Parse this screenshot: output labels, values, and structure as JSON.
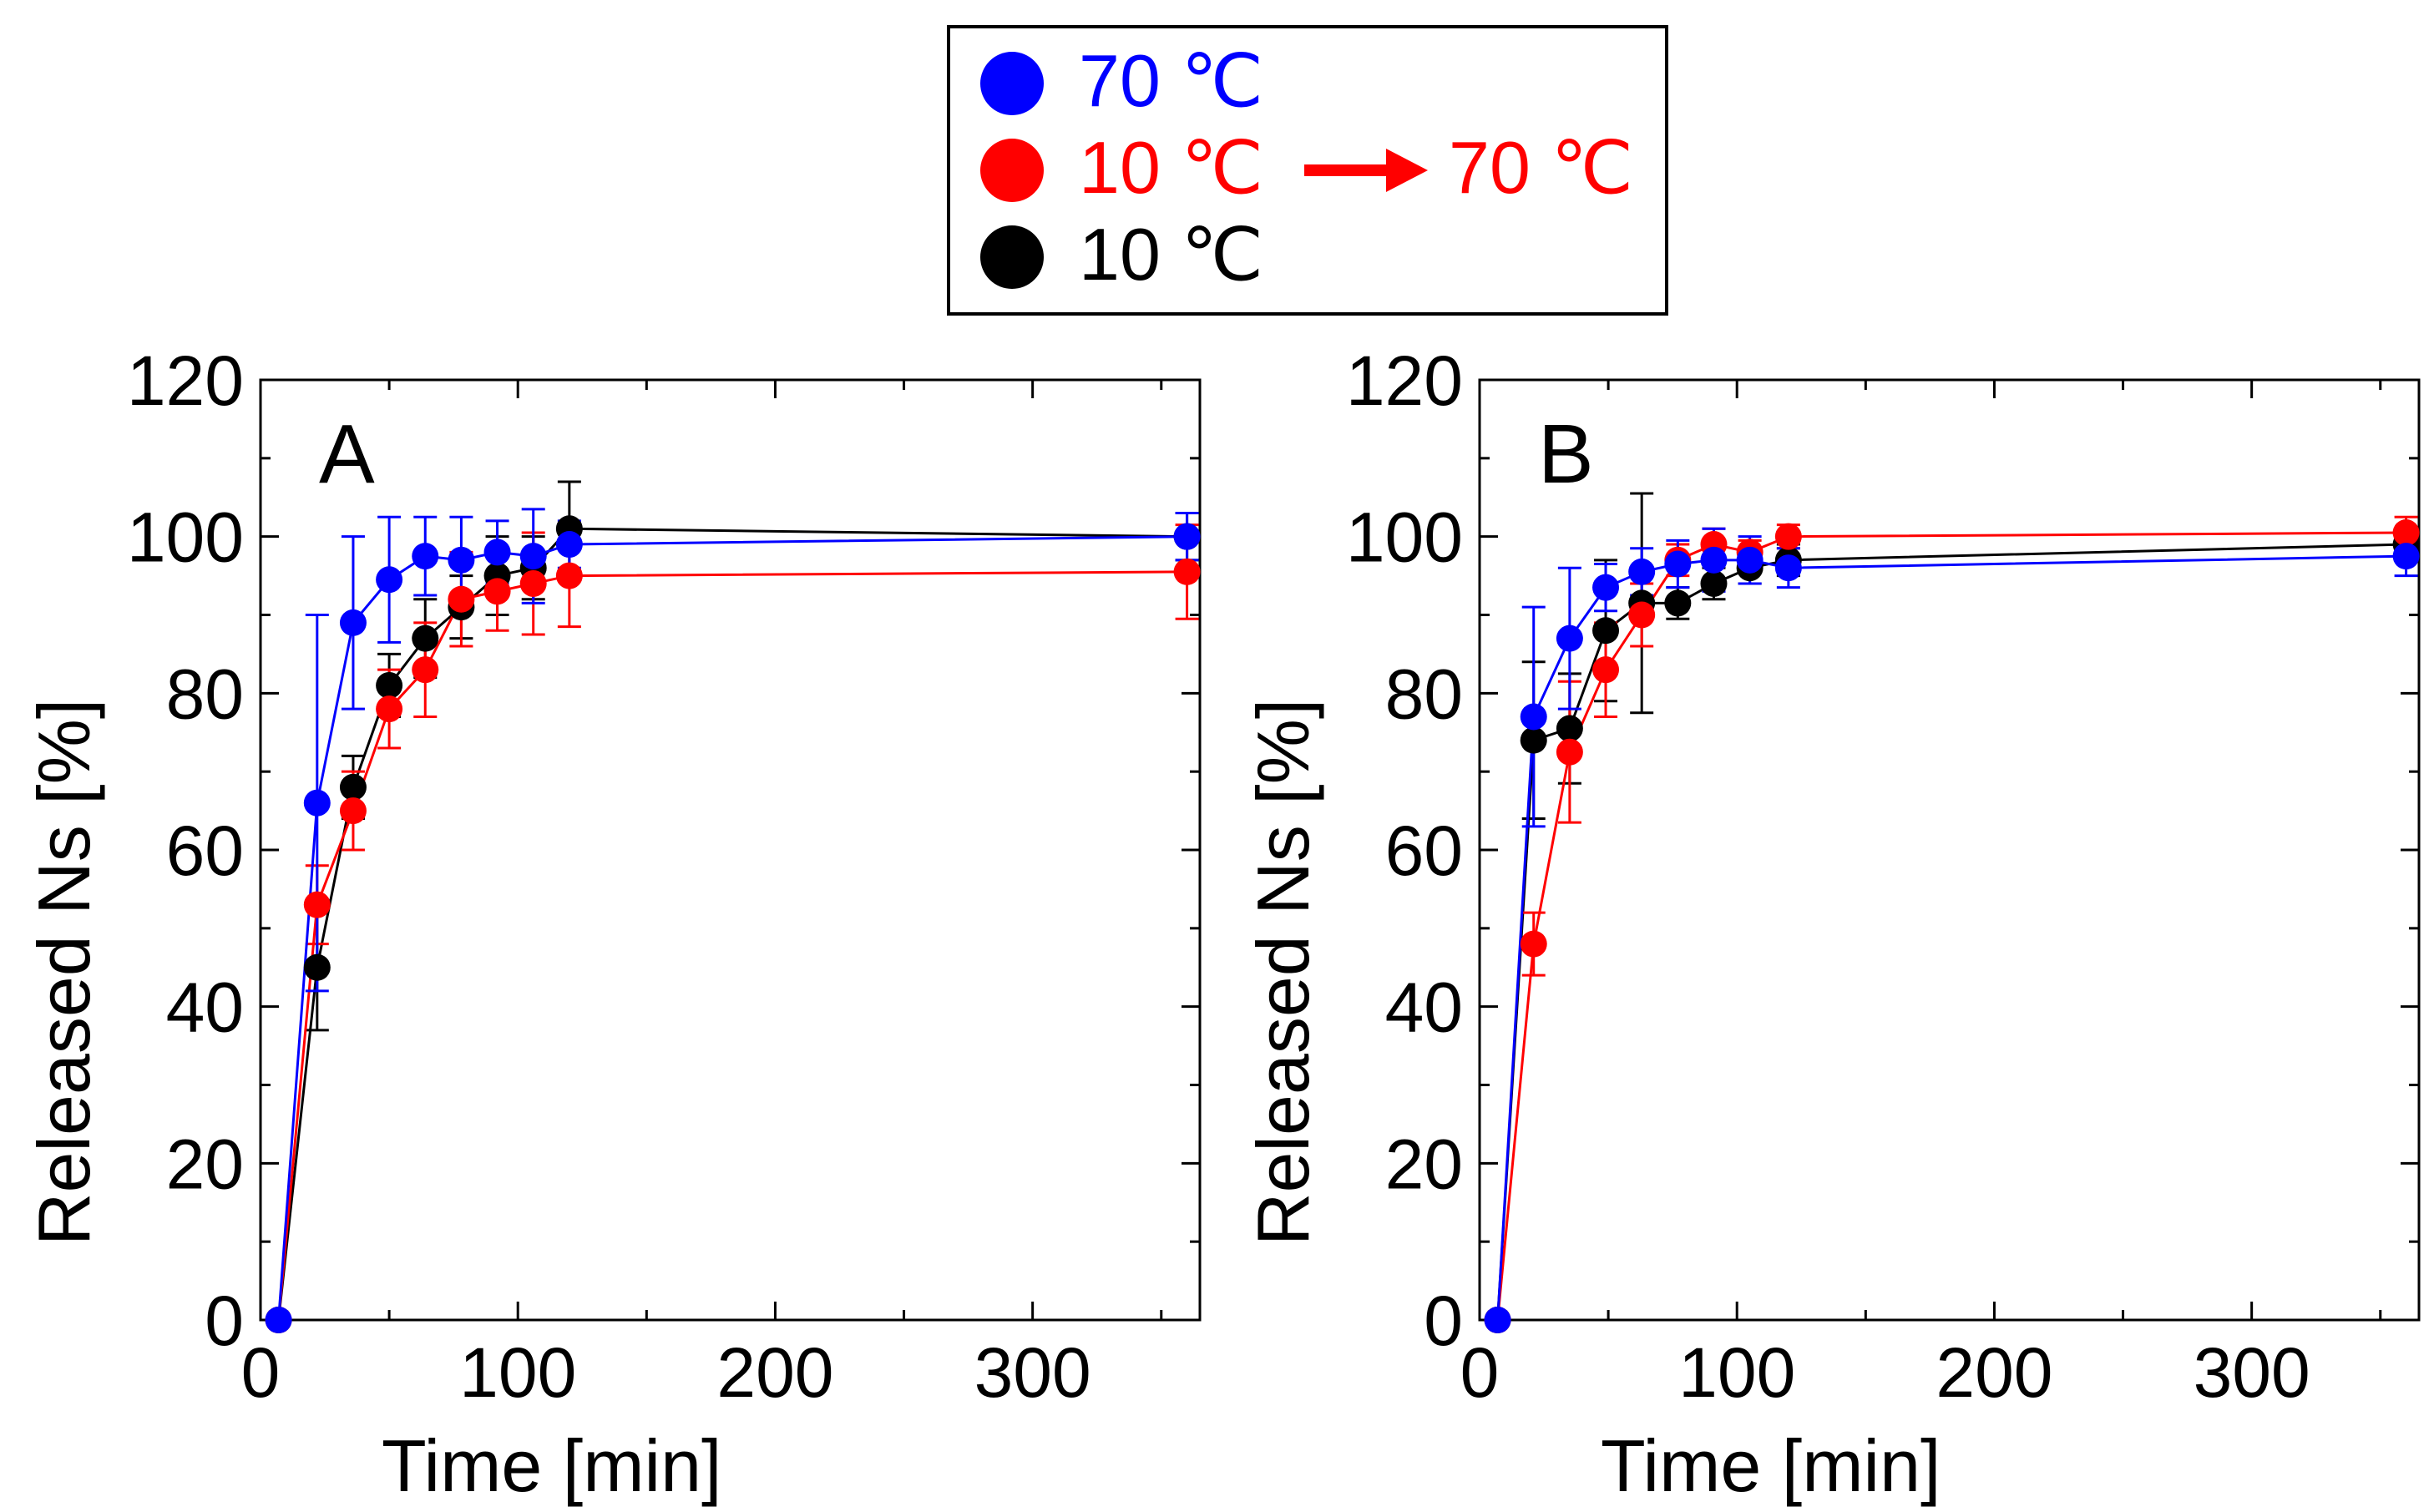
{
  "legend": {
    "entries": [
      {
        "label": "70 ℃",
        "color": "#0000ff"
      },
      {
        "label": "10 ℃",
        "color": "#ff0000",
        "arrow_label": "70 ℃"
      },
      {
        "label": "10 ℃",
        "color": "#000000"
      }
    ]
  },
  "chart_data": [
    {
      "type": "scatter",
      "panel_label": "A",
      "title": "",
      "xlabel": "Time  [min]",
      "ylabel": "Released Ns [%]",
      "xlim": [
        0,
        365
      ],
      "ylim": [
        0,
        120
      ],
      "x_ticks": [
        0,
        100,
        200,
        300
      ],
      "y_ticks": [
        0,
        20,
        40,
        60,
        80,
        100,
        120
      ],
      "connected": true,
      "series": [
        {
          "name": "10 ℃",
          "color": "#000000",
          "x": [
            7,
            22,
            36,
            50,
            64,
            78,
            92,
            106,
            120,
            360
          ],
          "y": [
            0,
            45,
            68,
            81,
            87,
            91,
            95,
            96,
            101,
            100
          ],
          "err": [
            0,
            8,
            4,
            4,
            5,
            4,
            5,
            4,
            6,
            3
          ]
        },
        {
          "name": "10 ℃ → 70 ℃",
          "color": "#ff0000",
          "x": [
            7,
            22,
            36,
            50,
            64,
            78,
            92,
            106,
            120,
            360
          ],
          "y": [
            0,
            53,
            65,
            78,
            83,
            92,
            93,
            94,
            95,
            95.5
          ],
          "err": [
            0,
            5,
            5,
            5,
            6,
            6,
            5,
            6.5,
            6.5,
            6
          ]
        },
        {
          "name": "70 ℃",
          "color": "#0000ff",
          "x": [
            7,
            22,
            36,
            50,
            64,
            78,
            92,
            106,
            120,
            360
          ],
          "y": [
            0,
            66,
            89,
            94.5,
            97.5,
            97,
            98,
            97.5,
            99,
            100
          ],
          "err": [
            0,
            24,
            11,
            8,
            5,
            5.5,
            4,
            6,
            3,
            3
          ]
        }
      ]
    },
    {
      "type": "scatter",
      "panel_label": "B",
      "title": "",
      "xlabel": "Time  [min]",
      "ylabel": "Released Ns [%]",
      "xlim": [
        0,
        365
      ],
      "ylim": [
        0,
        120
      ],
      "x_ticks": [
        0,
        100,
        200,
        300
      ],
      "y_ticks": [
        0,
        20,
        40,
        60,
        80,
        100,
        120
      ],
      "connected": true,
      "series": [
        {
          "name": "10 ℃",
          "color": "#000000",
          "x": [
            7,
            21,
            35,
            49,
            63,
            77,
            91,
            105,
            120,
            360
          ],
          "y": [
            0,
            74,
            75.5,
            88,
            91.5,
            91.5,
            94,
            96,
            97,
            99
          ],
          "err": [
            0,
            10,
            7,
            9,
            14,
            2,
            2,
            2,
            2,
            2
          ]
        },
        {
          "name": "10 ℃ → 70 ℃",
          "color": "#ff0000",
          "x": [
            7,
            21,
            35,
            49,
            63,
            77,
            91,
            105,
            120,
            360
          ],
          "y": [
            0,
            48,
            72.5,
            83,
            90,
            97,
            99,
            98,
            100,
            100.5
          ],
          "err": [
            0,
            4,
            9,
            6,
            4,
            2,
            2,
            1.5,
            1.5,
            2
          ]
        },
        {
          "name": "70 ℃",
          "color": "#0000ff",
          "x": [
            7,
            21,
            35,
            49,
            63,
            77,
            91,
            105,
            120,
            360
          ],
          "y": [
            0,
            77,
            87,
            93.5,
            95.5,
            96.5,
            97,
            97,
            96,
            97.5
          ],
          "err": [
            0,
            14,
            9,
            3,
            3,
            3,
            4,
            3,
            2.5,
            2.5
          ]
        }
      ]
    }
  ]
}
